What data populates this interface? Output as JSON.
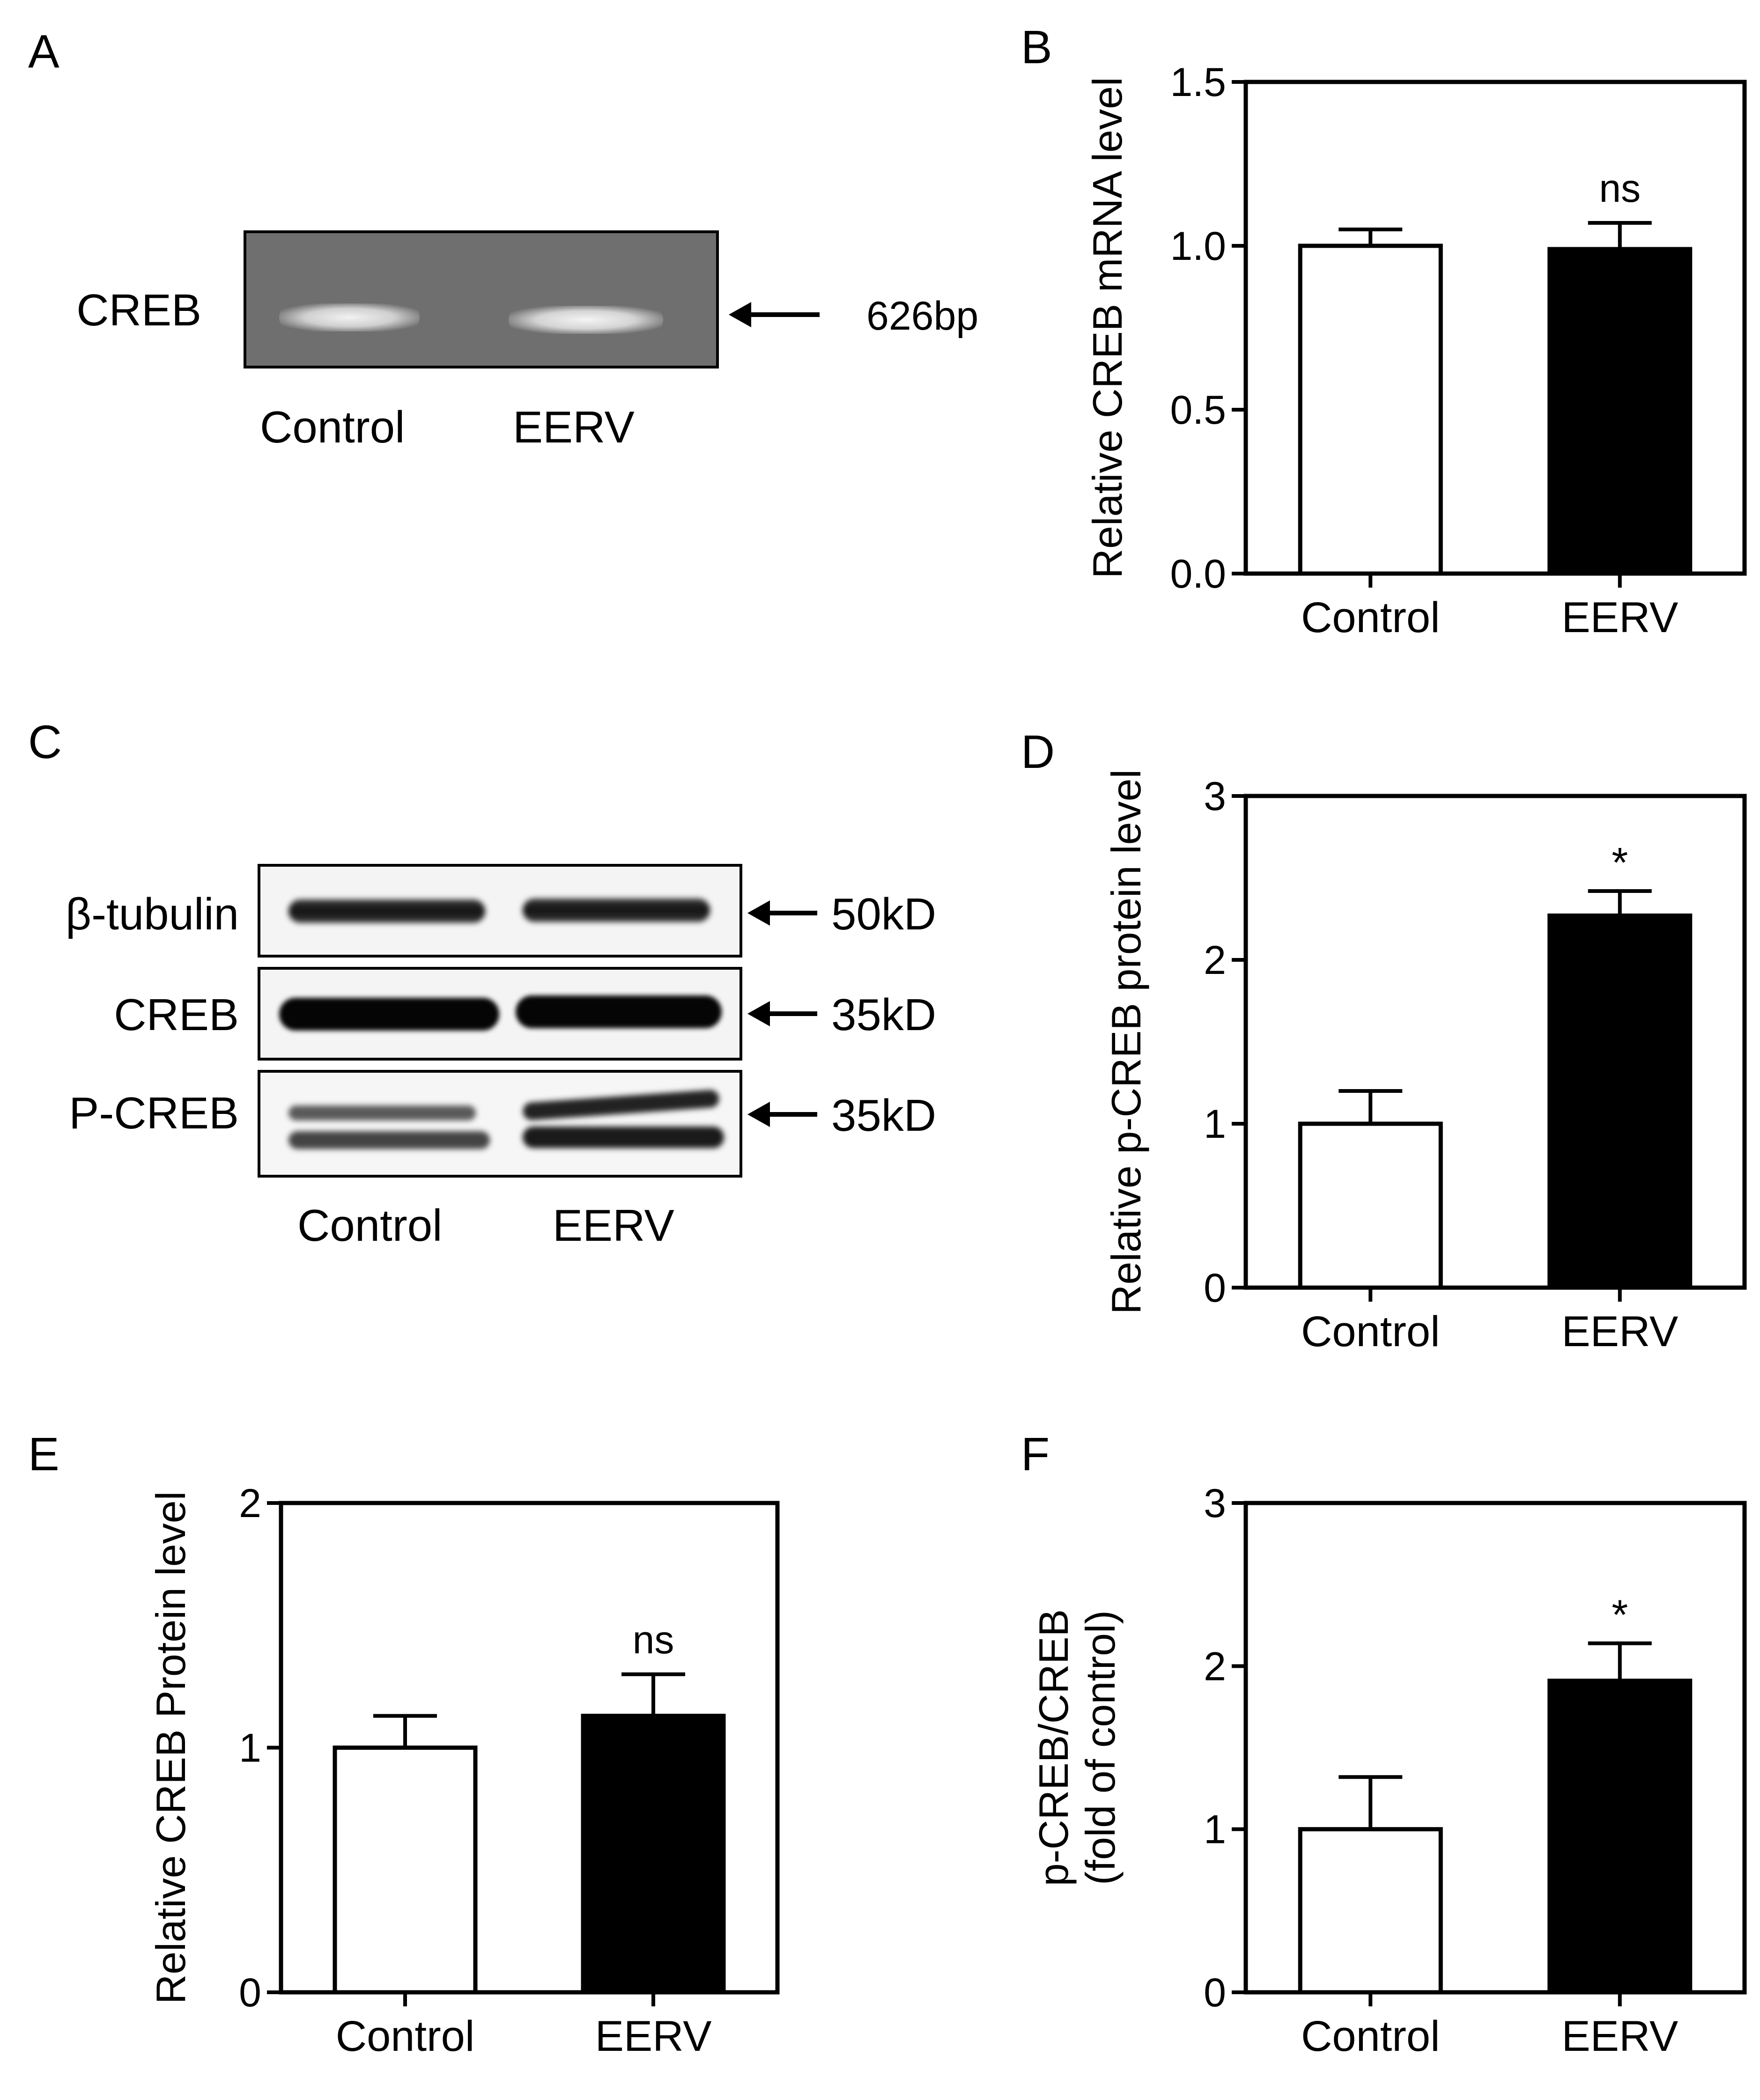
{
  "panels": {
    "A": {
      "letter": "A",
      "row_label": "CREB",
      "band_size": "626bp",
      "lanes": [
        "Control",
        "EERV"
      ]
    },
    "C": {
      "letter": "C",
      "rows": [
        {
          "label": "β-tubulin",
          "size": "50kD"
        },
        {
          "label": "CREB",
          "size": "35kD"
        },
        {
          "label": "P-CREB",
          "size": "35kD"
        }
      ],
      "lanes": [
        "Control",
        "EERV"
      ]
    }
  },
  "colors": {
    "control": "#ffffff",
    "eerv": "#000000",
    "axis": "#000000"
  },
  "chart_data": [
    {
      "id": "B",
      "letter": "B",
      "type": "bar",
      "categories": [
        "Control",
        "EERV"
      ],
      "values": [
        1.0,
        0.99
      ],
      "errors": [
        0.05,
        0.08
      ],
      "annotations": [
        "",
        "ns"
      ],
      "ylabel": [
        "Relative CREB mRNA level"
      ],
      "ylim": [
        0,
        1.5
      ],
      "yticks": [
        0.0,
        0.5,
        1.0,
        1.5
      ],
      "ytick_labels": [
        "0.0",
        "0.5",
        "1.0",
        "1.5"
      ]
    },
    {
      "id": "D",
      "letter": "D",
      "type": "bar",
      "categories": [
        "Control",
        "EERV"
      ],
      "values": [
        1.0,
        2.27
      ],
      "errors": [
        0.2,
        0.15
      ],
      "annotations": [
        "",
        "*"
      ],
      "ylabel": [
        "Relative p-CREB protein level"
      ],
      "ylim": [
        0,
        3
      ],
      "yticks": [
        0,
        1,
        2,
        3
      ],
      "ytick_labels": [
        "0",
        "1",
        "2",
        "3"
      ]
    },
    {
      "id": "E",
      "letter": "E",
      "type": "bar",
      "categories": [
        "Control",
        "EERV"
      ],
      "values": [
        1.0,
        1.13
      ],
      "errors": [
        0.13,
        0.17
      ],
      "annotations": [
        "",
        "ns"
      ],
      "ylabel": [
        "Relative CREB Protein level"
      ],
      "ylim": [
        0,
        2
      ],
      "yticks": [
        0,
        1,
        2
      ],
      "ytick_labels": [
        "0",
        "1",
        "2"
      ]
    },
    {
      "id": "F",
      "letter": "F",
      "type": "bar",
      "categories": [
        "Control",
        "EERV"
      ],
      "values": [
        1.0,
        1.91
      ],
      "errors": [
        0.32,
        0.23
      ],
      "annotations": [
        "",
        "*"
      ],
      "ylabel": [
        "p-CREB/CREB",
        "(fold of control)"
      ],
      "ylim": [
        0,
        3
      ],
      "yticks": [
        0,
        1,
        2,
        3
      ],
      "ytick_labels": [
        "0",
        "1",
        "2",
        "3"
      ]
    }
  ]
}
